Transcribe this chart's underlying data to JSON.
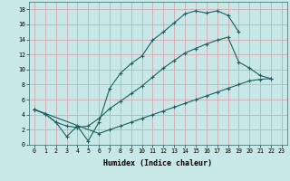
{
  "xlabel": "Humidex (Indice chaleur)",
  "bg_color": "#c8e8e8",
  "grid_color": "#d4a8b0",
  "line_color": "#1a6060",
  "line1_x": [
    0,
    1,
    2,
    3,
    4,
    5,
    6,
    7,
    8,
    9,
    10,
    11,
    12,
    13,
    14,
    15,
    16,
    17,
    18,
    19
  ],
  "line1_y": [
    4.7,
    4.1,
    3.0,
    1.1,
    2.5,
    0.5,
    3.0,
    7.5,
    9.5,
    10.8,
    11.8,
    13.9,
    15.0,
    16.2,
    17.4,
    17.8,
    17.5,
    17.8,
    17.2,
    15.0
  ],
  "line2_x": [
    0,
    1,
    2,
    3,
    4,
    5,
    6,
    7,
    8,
    9,
    10,
    11,
    12,
    13,
    14,
    15,
    16,
    17,
    18,
    19,
    20,
    21,
    22
  ],
  "line2_y": [
    4.7,
    4.1,
    3.0,
    2.5,
    2.3,
    2.5,
    3.5,
    4.8,
    5.8,
    6.8,
    7.8,
    9.0,
    10.2,
    11.2,
    12.2,
    12.8,
    13.4,
    13.9,
    14.3,
    11.0,
    10.2,
    9.2,
    8.8
  ],
  "line3_x": [
    0,
    6,
    7,
    8,
    9,
    10,
    11,
    12,
    13,
    14,
    15,
    16,
    17,
    18,
    19,
    20,
    21,
    22
  ],
  "line3_y": [
    4.7,
    1.5,
    2.0,
    2.5,
    3.0,
    3.5,
    4.0,
    4.5,
    5.0,
    5.5,
    6.0,
    6.5,
    7.0,
    7.5,
    8.0,
    8.5,
    8.7,
    8.8
  ],
  "ylim": [
    0,
    19
  ],
  "xlim": [
    -0.5,
    23.5
  ],
  "yticks": [
    0,
    2,
    4,
    6,
    8,
    10,
    12,
    14,
    16,
    18
  ],
  "xticks": [
    0,
    1,
    2,
    3,
    4,
    5,
    6,
    7,
    8,
    9,
    10,
    11,
    12,
    13,
    14,
    15,
    16,
    17,
    18,
    19,
    20,
    21,
    22,
    23
  ],
  "markersize": 3.0,
  "linewidth": 0.8,
  "tick_fontsize": 4.8,
  "xlabel_fontsize": 6.0
}
